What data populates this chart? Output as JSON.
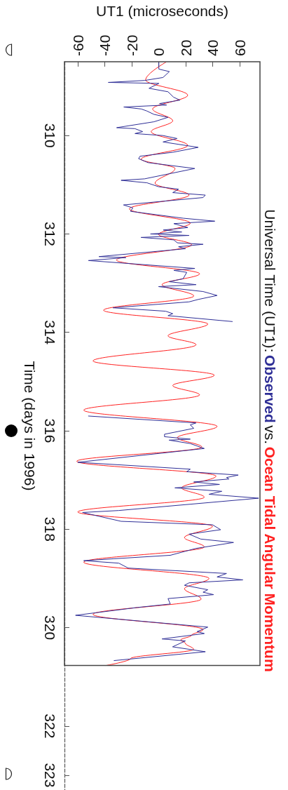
{
  "chart_data": {
    "type": "line",
    "title": "Universal Time (UT1):",
    "annotations": [
      "vs."
    ],
    "xlabel": "UT1 (microseconds)",
    "ylabel": "Time (days in 1996)",
    "xlim": [
      -70,
      75
    ],
    "xticks": [
      -60,
      -40,
      -20,
      0,
      20,
      40,
      60
    ],
    "ylim": [
      323.3,
      308.5
    ],
    "yticks": [
      310,
      312,
      314,
      316,
      318,
      320,
      322,
      323
    ],
    "grid": false,
    "legend": "right",
    "marker": "none",
    "line_style": "solid",
    "series": [
      {
        "name": "Observed",
        "color": "#2e2e96",
        "values": [
          308.51,
          308.65,
          308.7,
          308.82,
          308.88,
          308.92,
          308.94,
          309.04,
          309.11,
          309.22,
          309.28,
          309.35,
          309.38,
          309.42,
          309.46,
          309.5,
          309.57,
          309.63,
          309.72,
          309.84,
          309.86,
          309.92,
          309.96,
          310.0,
          310.06,
          310.13,
          310.24,
          310.34,
          310.42,
          310.47,
          310.55,
          310.67,
          310.88,
          310.91,
          310.96,
          311.04,
          311.09,
          311.16,
          311.21,
          311.26,
          311.41,
          311.47,
          311.54,
          311.68,
          311.74,
          311.79,
          311.87,
          311.92,
          311.96,
          312.0,
          312.03,
          312.07,
          312.12,
          312.18,
          312.21,
          312.26,
          312.3,
          312.46,
          312.48,
          312.54,
          312.7,
          312.74,
          312.78,
          312.91,
          312.97,
          313.03,
          313.07,
          313.17,
          313.25,
          313.33,
          313.38,
          313.5,
          313.57,
          313.62,
          313.66,
          313.78,
          null,
          315.7,
          315.84,
          315.88,
          315.95,
          316.07,
          316.12,
          316.17,
          316.19,
          316.26,
          316.36,
          316.64,
          316.78,
          316.83,
          316.9,
          316.95,
          316.98,
          317.04,
          317.09,
          317.16,
          317.23,
          317.29,
          317.37,
          317.62,
          317.66,
          317.84,
          317.91,
          318.01,
          318.1,
          318.2,
          318.27,
          318.39,
          318.53,
          318.6,
          318.64,
          318.69,
          318.79,
          318.9,
          318.97,
          319.03,
          319.09,
          319.14,
          319.23,
          319.28,
          319.33,
          319.41,
          319.52,
          319.59,
          319.75,
          319.99,
          320.08,
          320.12,
          320.23,
          320.27,
          320.39,
          320.49,
          320.67
        ],
        "x": [
          0,
          0,
          7.8,
          3.1,
          -10.4,
          -37.5,
          0,
          -7.3,
          6.8,
          10.9,
          15.6,
          0.5,
          5.7,
          -26,
          -13,
          -9,
          -3.6,
          6.8,
          -3.6,
          -31.3,
          -17.7,
          -12,
          -17.7,
          3.1,
          13.5,
          3.1,
          29.2,
          10.3,
          -14,
          -15,
          -8,
          26.6,
          -10.6,
          -28,
          -8.8,
          -0.2,
          14.6,
          10.3,
          34.5,
          32.8,
          -26.2,
          -19.3,
          -21,
          18,
          41.5,
          11.1,
          21.5,
          3.3,
          17,
          -6.2,
          22.4,
          -13.2,
          11.1,
          13.7,
          32.8,
          14.6,
          19.8,
          -44.4,
          -24.4,
          -52.2,
          26.7,
          11.1,
          20.7,
          18,
          7.6,
          27.6,
          -0.2,
          32.8,
          43.2,
          29.3,
          22.4,
          -34,
          5.1,
          10.3,
          6.8,
          54.5,
          null,
          -52.2,
          27.6,
          23.3,
          25.9,
          4.2,
          4.2,
          23.3,
          7.6,
          23.3,
          33.7,
          -60.1,
          23.3,
          20.7,
          58.9,
          50.2,
          52,
          25.9,
          45,
          11.9,
          46.7,
          37.2,
          74,
          -29.7,
          -56.6,
          -28,
          39.8,
          45.8,
          22.4,
          31,
          55.4,
          27.6,
          8.5,
          -33.2,
          -55.7,
          -29.7,
          -22.7,
          50.2,
          43.2,
          62.3,
          22.4,
          19,
          36.3,
          32.8,
          40.6,
          6.8,
          8.5,
          -15.8,
          -61.8,
          36.3,
          28.4,
          33.7,
          2.4,
          19.7,
          10.2,
          34.5,
          -33.2
        ]
      },
      {
        "name": "Ocean Tidal Angular Momentum",
        "color": "#ff2020",
        "values": [
          308.51,
          308.87,
          309.18,
          309.46,
          309.7,
          309.92,
          310.2,
          310.48,
          310.67,
          310.97,
          311.21,
          311.49,
          311.78,
          312.01,
          312.22,
          312.53,
          312.81,
          313.03,
          313.26,
          313.55,
          313.83,
          314.07,
          314.25,
          314.58,
          314.87,
          315.08,
          315.27,
          315.58,
          315.91,
          316.14,
          316.33,
          316.62,
          316.92,
          317.16,
          317.35,
          317.65,
          317.94,
          318.17,
          318.36,
          318.67,
          319.0,
          319.21,
          319.42,
          319.73,
          320.04,
          320.16,
          320.25,
          320.32,
          320.44,
          320.63,
          320.77
        ],
        "x": [
          5.2,
          -9.8,
          21.4,
          -4.6,
          10.3,
          -5.7,
          21.4,
          -13.1,
          12,
          -2.8,
          22.4,
          -21.9,
          23.3,
          -0.2,
          24.3,
          -31.4,
          30.2,
          2.4,
          25.9,
          -41,
          36.3,
          6.8,
          27.6,
          -48.8,
          41.1,
          10.3,
          30.2,
          -55.7,
          43.2,
          13.7,
          31.9,
          -60.9,
          42.4,
          17,
          33.7,
          -60.1,
          39.8,
          19,
          33.7,
          -55.7,
          37.2,
          19,
          31.4,
          -48.8,
          32.8,
          24.1,
          16.2,
          19.7,
          25.8,
          -21,
          -39.2
        ]
      }
    ]
  }
}
